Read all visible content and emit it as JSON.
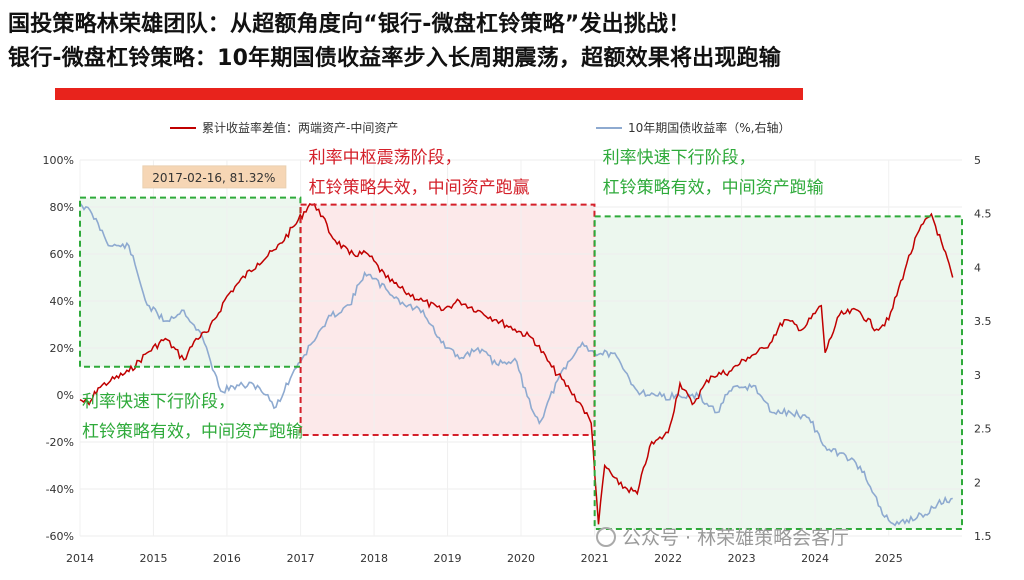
{
  "header": {
    "title_line1": "国投策略林荣雄团队：从超额角度向“银行-微盘杠铃策略”发出挑战！",
    "title_line2": "银行-微盘杠铃策略：10年期国债收益率步入长周期震荡，超额效果将出现跑输"
  },
  "colors": {
    "accent_bar": "#e8231c",
    "series_red": "#c00000",
    "series_blue": "#8eaad0",
    "green": "#2eaa3a",
    "red_zone": "#d4202a"
  },
  "watermark": "公众号 · 林荣雄策略会客厅",
  "chart_data": {
    "type": "line",
    "legend_position": "top",
    "series": [
      {
        "name": "累计收益率差值：两端资产-中间资产",
        "axis": "left",
        "points": [
          [
            "2014-01-01",
            -2
          ],
          [
            "2014-02-15",
            -4
          ],
          [
            "2014-04-01",
            3
          ],
          [
            "2014-06-01",
            6
          ],
          [
            "2014-09-01",
            10
          ],
          [
            "2014-12-01",
            18
          ],
          [
            "2015-03-01",
            24
          ],
          [
            "2015-06-01",
            15
          ],
          [
            "2015-08-01",
            24
          ],
          [
            "2015-10-01",
            27
          ],
          [
            "2016-01-01",
            42
          ],
          [
            "2016-03-01",
            48
          ],
          [
            "2016-06-01",
            56
          ],
          [
            "2016-09-01",
            62
          ],
          [
            "2016-12-01",
            72
          ],
          [
            "2017-02-16",
            81.32
          ],
          [
            "2017-04-01",
            79
          ],
          [
            "2017-06-01",
            68
          ],
          [
            "2017-09-01",
            60
          ],
          [
            "2017-12-01",
            60
          ],
          [
            "2018-03-01",
            50
          ],
          [
            "2018-06-01",
            44
          ],
          [
            "2018-09-01",
            40
          ],
          [
            "2018-12-01",
            36
          ],
          [
            "2019-03-01",
            40
          ],
          [
            "2019-06-01",
            36
          ],
          [
            "2019-09-01",
            32
          ],
          [
            "2019-12-01",
            28
          ],
          [
            "2020-03-01",
            24
          ],
          [
            "2020-06-01",
            12
          ],
          [
            "2020-09-01",
            2
          ],
          [
            "2020-11-01",
            -5
          ],
          [
            "2020-12-15",
            -12
          ],
          [
            "2021-01-20",
            -55
          ],
          [
            "2021-02-20",
            -30
          ],
          [
            "2021-05-01",
            -38
          ],
          [
            "2021-08-01",
            -42
          ],
          [
            "2021-10-01",
            -22
          ],
          [
            "2022-01-01",
            -16
          ],
          [
            "2022-03-01",
            5
          ],
          [
            "2022-05-01",
            -4
          ],
          [
            "2022-08-01",
            8
          ],
          [
            "2022-11-01",
            10
          ],
          [
            "2023-02-01",
            16
          ],
          [
            "2023-05-01",
            20
          ],
          [
            "2023-08-01",
            32
          ],
          [
            "2023-11-01",
            28
          ],
          [
            "2024-02-01",
            38
          ],
          [
            "2024-02-20",
            18
          ],
          [
            "2024-05-01",
            34
          ],
          [
            "2024-08-01",
            36
          ],
          [
            "2024-11-01",
            28
          ],
          [
            "2025-01-01",
            32
          ],
          [
            "2025-04-01",
            56
          ],
          [
            "2025-06-01",
            70
          ],
          [
            "2025-08-01",
            77
          ],
          [
            "2025-10-01",
            62
          ],
          [
            "2025-11-15",
            50
          ]
        ]
      },
      {
        "name": "10年期国债收益率（%,右轴）",
        "axis": "right",
        "points": [
          [
            "2014-01-01",
            4.6
          ],
          [
            "2014-03-01",
            4.5
          ],
          [
            "2014-06-01",
            4.2
          ],
          [
            "2014-09-01",
            4.2
          ],
          [
            "2014-12-01",
            3.65
          ],
          [
            "2015-03-01",
            3.5
          ],
          [
            "2015-06-01",
            3.6
          ],
          [
            "2015-09-01",
            3.35
          ],
          [
            "2015-12-01",
            2.85
          ],
          [
            "2016-03-01",
            2.9
          ],
          [
            "2016-06-01",
            2.9
          ],
          [
            "2016-09-01",
            2.7
          ],
          [
            "2016-12-01",
            3.05
          ],
          [
            "2017-03-01",
            3.3
          ],
          [
            "2017-06-01",
            3.55
          ],
          [
            "2017-09-01",
            3.65
          ],
          [
            "2017-11-15",
            3.95
          ],
          [
            "2018-03-01",
            3.8
          ],
          [
            "2018-06-01",
            3.65
          ],
          [
            "2018-09-01",
            3.6
          ],
          [
            "2018-12-01",
            3.3
          ],
          [
            "2019-03-01",
            3.15
          ],
          [
            "2019-06-01",
            3.25
          ],
          [
            "2019-09-01",
            3.1
          ],
          [
            "2019-12-01",
            3.15
          ],
          [
            "2020-02-01",
            2.8
          ],
          [
            "2020-04-01",
            2.55
          ],
          [
            "2020-07-01",
            2.95
          ],
          [
            "2020-11-01",
            3.3
          ],
          [
            "2021-01-01",
            3.2
          ],
          [
            "2021-04-01",
            3.2
          ],
          [
            "2021-08-01",
            2.85
          ],
          [
            "2021-12-01",
            2.8
          ],
          [
            "2022-03-01",
            2.8
          ],
          [
            "2022-06-01",
            2.8
          ],
          [
            "2022-09-01",
            2.65
          ],
          [
            "2022-11-01",
            2.85
          ],
          [
            "2023-03-01",
            2.9
          ],
          [
            "2023-06-01",
            2.65
          ],
          [
            "2023-09-01",
            2.65
          ],
          [
            "2023-12-01",
            2.6
          ],
          [
            "2024-03-01",
            2.3
          ],
          [
            "2024-06-01",
            2.25
          ],
          [
            "2024-09-01",
            2.1
          ],
          [
            "2024-12-01",
            1.7
          ],
          [
            "2025-02-01",
            1.6
          ],
          [
            "2025-04-01",
            1.65
          ],
          [
            "2025-07-01",
            1.7
          ],
          [
            "2025-09-01",
            1.8
          ],
          [
            "2025-11-15",
            1.85
          ]
        ]
      }
    ],
    "x_range": [
      "2014-01-01",
      "2025-12-31"
    ],
    "x_ticks": [
      "2014",
      "2015",
      "2016",
      "2017",
      "2018",
      "2019",
      "2020",
      "2021",
      "2022",
      "2023",
      "2024",
      "2025"
    ],
    "y_left": {
      "range": [
        -60,
        100
      ],
      "ticks": [
        "-60%",
        "-40%",
        "-20%",
        "0%",
        "20%",
        "40%",
        "60%",
        "80%",
        "100%"
      ]
    },
    "y_right": {
      "range": [
        1.5,
        5
      ],
      "ticks": [
        "1.5",
        "2",
        "2.5",
        "3",
        "3.5",
        "4",
        "4.5",
        "5"
      ]
    },
    "annotation_peak": {
      "x": "2017-02-16",
      "y": 81.32,
      "label": "2017-02-16, 81.32%"
    },
    "zones": [
      {
        "style": "green",
        "x_start": "2014-01-01",
        "x_end": "2016-12-31",
        "y_top": 84,
        "y_bottom": 12,
        "label_lines": [
          "利率快速下行阶段，",
          "杠铃策略有效，中间资产跑输"
        ],
        "label_position": "bottom-left"
      },
      {
        "style": "red",
        "x_start": "2017-01-01",
        "x_end": "2020-12-31",
        "y_top": 81,
        "y_bottom": -17,
        "label_lines": [
          "利率中枢震荡阶段，",
          "杠铃策略失效，中间资产跑赢"
        ],
        "label_position": "top"
      },
      {
        "style": "green",
        "x_start": "2021-01-01",
        "x_end": "2025-12-31",
        "y_top": 76,
        "y_bottom": -57,
        "label_lines": [
          "利率快速下行阶段，",
          "杠铃策略有效，中间资产跑输"
        ],
        "label_position": "top"
      }
    ]
  }
}
